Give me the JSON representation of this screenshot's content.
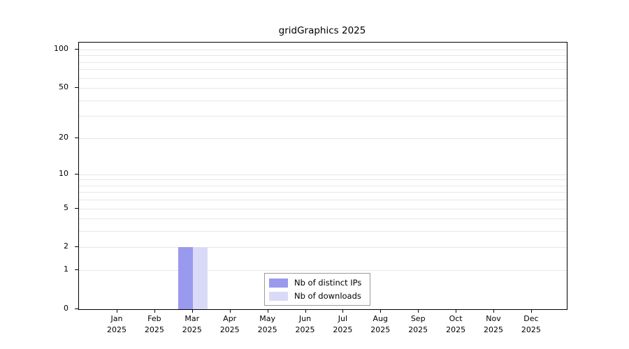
{
  "title": "gridGraphics 2025",
  "chart_data": {
    "type": "bar",
    "title": "gridGraphics 2025",
    "categories": [
      "Jan",
      "Feb",
      "Mar",
      "Apr",
      "May",
      "Jun",
      "Jul",
      "Aug",
      "Sep",
      "Oct",
      "Nov",
      "Dec"
    ],
    "year_label": "2025",
    "series": [
      {
        "name": "Nb of distinct IPs",
        "color": "#9999ee",
        "values": [
          0,
          0,
          2,
          0,
          0,
          0,
          0,
          0,
          0,
          0,
          0,
          0
        ]
      },
      {
        "name": "Nb of downloads",
        "color": "#dadaf8",
        "values": [
          0,
          0,
          2,
          0,
          0,
          0,
          0,
          0,
          0,
          0,
          0,
          0
        ]
      }
    ],
    "y_ticks": [
      0,
      1,
      2,
      5,
      10,
      20,
      50,
      100
    ],
    "y_scale": "log1p",
    "ylim": [
      0,
      113
    ],
    "grid": true,
    "grid_values": [
      1,
      2,
      3,
      4,
      5,
      6,
      7,
      8,
      9,
      10,
      20,
      30,
      40,
      50,
      60,
      70,
      80,
      90,
      100
    ],
    "grid_color": "#e7e7e7",
    "axis_color": "#000000",
    "background_color": "#ffffff",
    "legend_position": "bottom-center",
    "legend_entries": [
      "Nb of distinct IPs",
      "Nb of downloads"
    ]
  }
}
